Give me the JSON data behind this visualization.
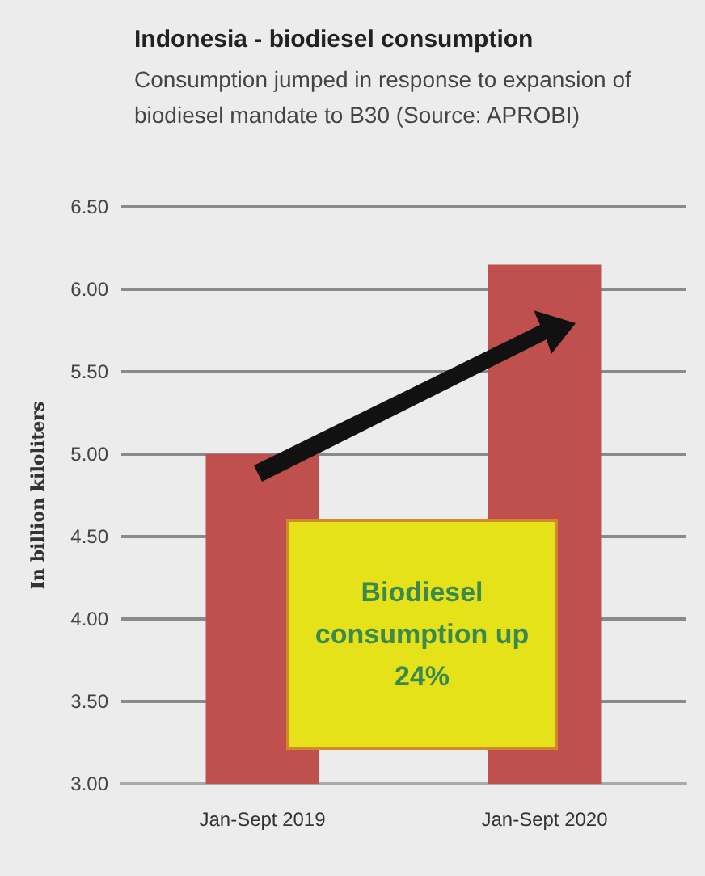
{
  "chart_data": {
    "type": "bar",
    "title": "Indonesia - biodiesel consumption",
    "subtitle": "Consumption jumped in response to expansion of biodiesel mandate to B30 (Source: APROBI)",
    "ylabel": "In billion kiloliters",
    "categories": [
      "Jan-Sept 2019",
      "Jan-Sept 2020"
    ],
    "values": [
      5.0,
      6.15
    ],
    "color": "#c0504d",
    "ylim": [
      3,
      6.5
    ],
    "yticks": [
      {
        "value": 3,
        "label": "3.00"
      },
      {
        "value": 3.5,
        "label": "3.50"
      },
      {
        "value": 4,
        "label": "4.00"
      },
      {
        "value": 4.5,
        "label": "4.50"
      },
      {
        "value": 5,
        "label": "5.00"
      },
      {
        "value": 5.5,
        "label": "5.50"
      },
      {
        "value": 6,
        "label": "6.00"
      },
      {
        "value": 6.5,
        "label": "6.50"
      }
    ],
    "grid": "y",
    "annotations": [
      "Biodiesel consumption up 24%"
    ]
  }
}
